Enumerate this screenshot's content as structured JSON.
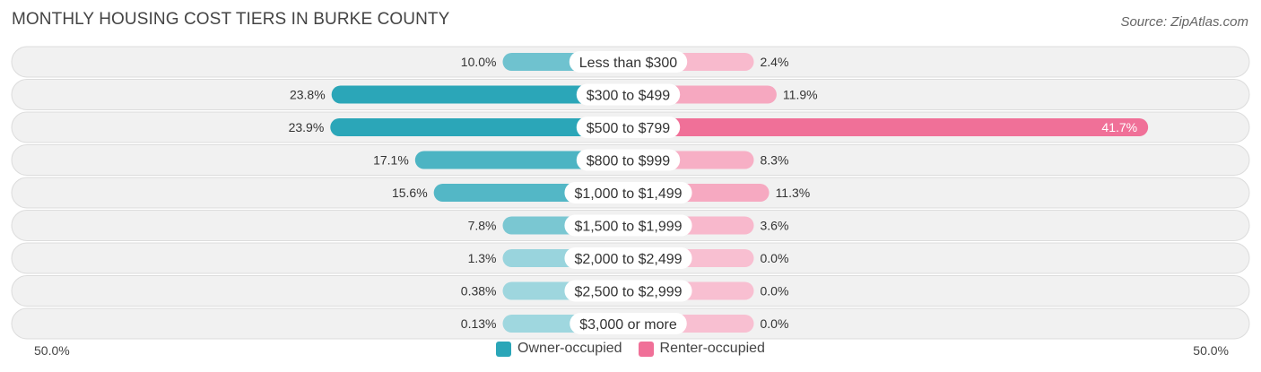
{
  "header": {
    "title": "MONTHLY HOUSING COST TIERS IN BURKE COUNTY",
    "source": "Source: ZipAtlas.com"
  },
  "chart_data": {
    "type": "bar",
    "orientation": "diverging-horizontal",
    "title": "MONTHLY HOUSING COST TIERS IN BURKE COUNTY",
    "categories": [
      "Less than $300",
      "$300 to $499",
      "$500 to $799",
      "$800 to $999",
      "$1,000 to $1,499",
      "$1,500 to $1,999",
      "$2,000 to $2,499",
      "$2,500 to $2,999",
      "$3,000 or more"
    ],
    "series": [
      {
        "name": "Owner-occupied",
        "color": "#2ba6b8",
        "values": [
          10.0,
          23.8,
          23.9,
          17.1,
          15.6,
          7.8,
          1.3,
          0.38,
          0.13
        ],
        "labels": [
          "10.0%",
          "23.8%",
          "23.9%",
          "17.1%",
          "15.6%",
          "7.8%",
          "1.3%",
          "0.38%",
          "0.13%"
        ]
      },
      {
        "name": "Renter-occupied",
        "color": "#f07098",
        "values": [
          2.4,
          11.9,
          41.7,
          8.3,
          11.3,
          3.6,
          0.0,
          0.0,
          0.0
        ],
        "labels": [
          "2.4%",
          "11.9%",
          "41.7%",
          "8.3%",
          "11.3%",
          "3.6%",
          "0.0%",
          "0.0%",
          "0.0%"
        ]
      }
    ],
    "axis": {
      "left_label": "50.0%",
      "right_label": "50.0%",
      "range": [
        -50,
        50
      ]
    },
    "legend": {
      "position": "bottom-center"
    }
  }
}
